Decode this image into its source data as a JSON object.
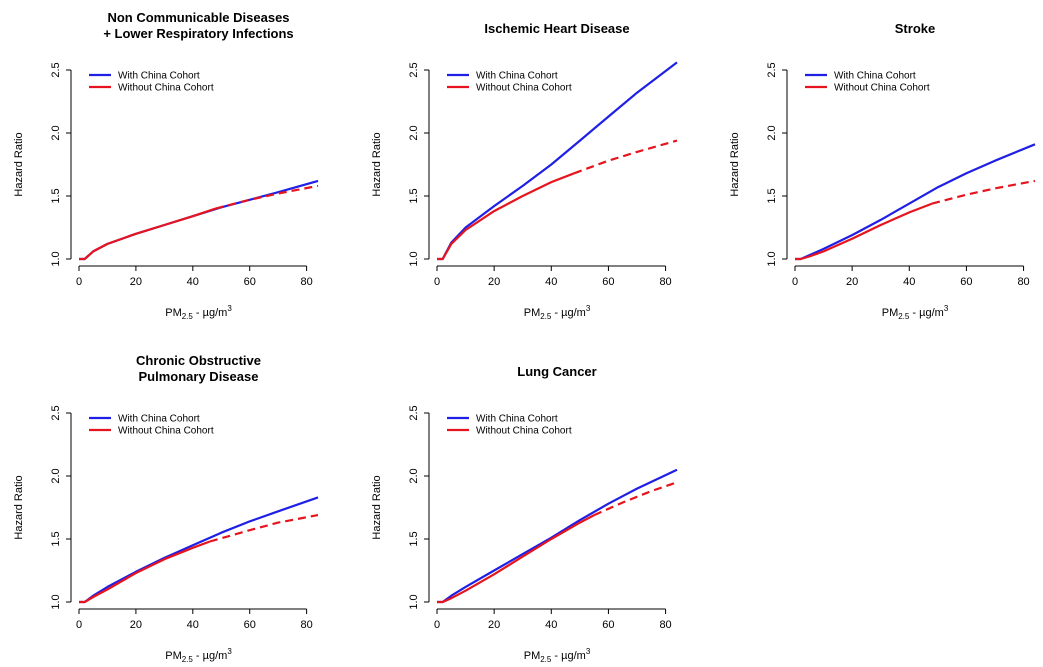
{
  "chart_data": [
    {
      "type": "line",
      "title": [
        "Non Communicable Diseases",
        "+ Lower Respiratory Infections"
      ],
      "xlabel": "PM",
      "xlabel_sub": "2.5",
      "xlabel_unit": " - µg/m",
      "xlabel_sup": "3",
      "ylabel": "Hazard Ratio",
      "xlim": [
        0,
        84
      ],
      "ylim": [
        1.0,
        2.5
      ],
      "xticks": [
        "0",
        "20",
        "40",
        "60",
        "80"
      ],
      "yticks": [
        "1.0",
        "1.5",
        "2.0",
        "2.5"
      ],
      "legend": [
        "With China Cohort",
        "Without China Cohort"
      ],
      "legend_position": "top-left",
      "series": [
        {
          "name": "With China Cohort",
          "color": "#1f1fe6",
          "style": "solid",
          "x": [
            0,
            2,
            5,
            10,
            20,
            30,
            40,
            50,
            60,
            70,
            84
          ],
          "y": [
            1.0,
            1.0,
            1.06,
            1.12,
            1.2,
            1.27,
            1.34,
            1.41,
            1.47,
            1.53,
            1.62
          ]
        },
        {
          "name": "Without China Cohort",
          "color": "#e6141e",
          "style": "solid",
          "x": [
            0,
            2,
            5,
            10,
            20,
            30,
            40,
            48
          ],
          "y": [
            1.0,
            1.0,
            1.06,
            1.12,
            1.2,
            1.27,
            1.34,
            1.4
          ]
        },
        {
          "name": "Without China Cohort",
          "color": "#e6141e",
          "style": "dashed",
          "x": [
            48,
            60,
            70,
            84
          ],
          "y": [
            1.4,
            1.47,
            1.52,
            1.58
          ]
        }
      ]
    },
    {
      "type": "line",
      "title": [
        "Ischemic Heart Disease"
      ],
      "xlabel": "PM",
      "xlabel_sub": "2.5",
      "xlabel_unit": " - µg/m",
      "xlabel_sup": "3",
      "ylabel": "Hazard Ratio",
      "xlim": [
        0,
        84
      ],
      "ylim": [
        1.0,
        2.5
      ],
      "xticks": [
        "0",
        "20",
        "40",
        "60",
        "80"
      ],
      "yticks": [
        "1.0",
        "1.5",
        "2.0",
        "2.5"
      ],
      "legend": [
        "With China Cohort",
        "Without China Cohort"
      ],
      "legend_position": "top-left",
      "series": [
        {
          "name": "With China Cohort",
          "color": "#1f1fe6",
          "style": "solid",
          "x": [
            0,
            2,
            5,
            10,
            20,
            30,
            40,
            50,
            60,
            70,
            84
          ],
          "y": [
            1.0,
            1.0,
            1.13,
            1.25,
            1.42,
            1.58,
            1.75,
            1.94,
            2.13,
            2.32,
            2.56
          ]
        },
        {
          "name": "Without China Cohort",
          "color": "#e6141e",
          "style": "solid",
          "x": [
            0,
            2,
            5,
            10,
            20,
            30,
            40,
            48
          ],
          "y": [
            1.0,
            1.0,
            1.12,
            1.23,
            1.38,
            1.5,
            1.61,
            1.68
          ]
        },
        {
          "name": "Without China Cohort",
          "color": "#e6141e",
          "style": "dashed",
          "x": [
            48,
            60,
            70,
            84
          ],
          "y": [
            1.68,
            1.78,
            1.85,
            1.94
          ]
        }
      ]
    },
    {
      "type": "line",
      "title": [
        "Stroke"
      ],
      "xlabel": "PM",
      "xlabel_sub": "2.5",
      "xlabel_unit": " - µg/m",
      "xlabel_sup": "3",
      "ylabel": "Hazard Ratio",
      "xlim": [
        0,
        84
      ],
      "ylim": [
        1.0,
        2.5
      ],
      "xticks": [
        "0",
        "20",
        "40",
        "60",
        "80"
      ],
      "yticks": [
        "1.0",
        "1.5",
        "2.0",
        "2.5"
      ],
      "legend": [
        "With China Cohort",
        "Without China Cohort"
      ],
      "legend_position": "top-left",
      "series": [
        {
          "name": "With China Cohort",
          "color": "#1f1fe6",
          "style": "solid",
          "x": [
            0,
            2,
            5,
            10,
            20,
            30,
            40,
            50,
            60,
            70,
            84
          ],
          "y": [
            1.0,
            1.0,
            1.03,
            1.08,
            1.19,
            1.31,
            1.44,
            1.57,
            1.68,
            1.78,
            1.91
          ]
        },
        {
          "name": "Without China Cohort",
          "color": "#e6141e",
          "style": "solid",
          "x": [
            0,
            2,
            5,
            10,
            20,
            30,
            40,
            48
          ],
          "y": [
            1.0,
            1.0,
            1.02,
            1.06,
            1.16,
            1.27,
            1.37,
            1.44
          ]
        },
        {
          "name": "Without China Cohort",
          "color": "#e6141e",
          "style": "dashed",
          "x": [
            48,
            60,
            70,
            84
          ],
          "y": [
            1.44,
            1.51,
            1.56,
            1.62
          ]
        }
      ]
    },
    {
      "type": "line",
      "title": [
        "Chronic Obstructive",
        "Pulmonary Disease"
      ],
      "xlabel": "PM",
      "xlabel_sub": "2.5",
      "xlabel_unit": " - µg/m",
      "xlabel_sup": "3",
      "ylabel": "Hazard Ratio",
      "xlim": [
        0,
        84
      ],
      "ylim": [
        1.0,
        2.5
      ],
      "xticks": [
        "0",
        "20",
        "40",
        "60",
        "80"
      ],
      "yticks": [
        "1.0",
        "1.5",
        "2.0",
        "2.5"
      ],
      "legend": [
        "With China Cohort",
        "Without China Cohort"
      ],
      "legend_position": "top-left",
      "series": [
        {
          "name": "With China Cohort",
          "color": "#1f1fe6",
          "style": "solid",
          "x": [
            0,
            2,
            5,
            10,
            20,
            30,
            40,
            50,
            60,
            70,
            84
          ],
          "y": [
            1.0,
            1.0,
            1.05,
            1.12,
            1.24,
            1.35,
            1.45,
            1.55,
            1.64,
            1.72,
            1.83
          ]
        },
        {
          "name": "Without China Cohort",
          "color": "#e6141e",
          "style": "solid",
          "x": [
            0,
            2,
            5,
            10,
            20,
            30,
            40,
            46
          ],
          "y": [
            1.0,
            1.0,
            1.04,
            1.1,
            1.23,
            1.34,
            1.43,
            1.48
          ]
        },
        {
          "name": "Without China Cohort",
          "color": "#e6141e",
          "style": "dashed",
          "x": [
            46,
            60,
            70,
            84
          ],
          "y": [
            1.48,
            1.57,
            1.63,
            1.69
          ]
        }
      ]
    },
    {
      "type": "line",
      "title": [
        "Lung Cancer"
      ],
      "xlabel": "PM",
      "xlabel_sub": "2.5",
      "xlabel_unit": " - µg/m",
      "xlabel_sup": "3",
      "ylabel": "Hazard Ratio",
      "xlim": [
        0,
        84
      ],
      "ylim": [
        1.0,
        2.5
      ],
      "xticks": [
        "0",
        "20",
        "40",
        "60",
        "80"
      ],
      "yticks": [
        "1.0",
        "1.5",
        "2.0",
        "2.5"
      ],
      "legend": [
        "With China Cohort",
        "Without China Cohort"
      ],
      "legend_position": "top-left",
      "series": [
        {
          "name": "With China Cohort",
          "color": "#1f1fe6",
          "style": "solid",
          "x": [
            0,
            2,
            5,
            10,
            20,
            30,
            40,
            50,
            60,
            70,
            84
          ],
          "y": [
            1.0,
            1.0,
            1.05,
            1.12,
            1.25,
            1.38,
            1.51,
            1.65,
            1.78,
            1.9,
            2.05
          ]
        },
        {
          "name": "Without China Cohort",
          "color": "#e6141e",
          "style": "solid",
          "x": [
            0,
            2,
            5,
            10,
            20,
            30,
            40,
            50,
            55
          ],
          "y": [
            1.0,
            1.0,
            1.03,
            1.09,
            1.22,
            1.36,
            1.5,
            1.63,
            1.69
          ]
        },
        {
          "name": "Without China Cohort",
          "color": "#e6141e",
          "style": "dashed",
          "x": [
            55,
            65,
            75,
            84
          ],
          "y": [
            1.69,
            1.79,
            1.88,
            1.95
          ]
        }
      ]
    }
  ]
}
